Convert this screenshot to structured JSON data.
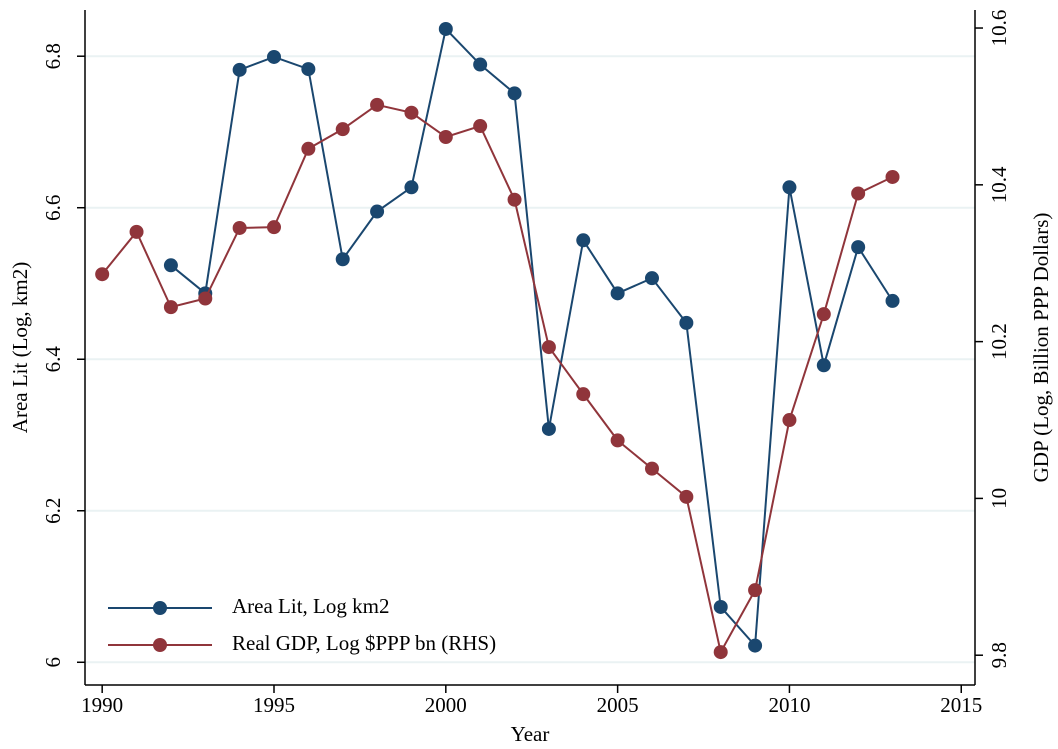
{
  "chart_data": {
    "type": "line",
    "x_label": "Year",
    "y_label": "Area Lit (Log, km2)",
    "y2_label": "GDP (Log, Billion PPP Dollars)",
    "x": [
      1990,
      1991,
      1992,
      1993,
      1994,
      1995,
      1996,
      1997,
      1998,
      1999,
      2000,
      2001,
      2002,
      2003,
      2004,
      2005,
      2006,
      2007,
      2008,
      2009,
      2010,
      2011,
      2012,
      2013
    ],
    "series": [
      {
        "name": "Area Lit, Log km2",
        "color": "#1a476f",
        "axis": "y",
        "values": [
          null,
          null,
          6.524,
          6.487,
          6.782,
          6.799,
          6.783,
          6.532,
          6.595,
          6.627,
          6.836,
          6.789,
          6.751,
          6.308,
          6.557,
          6.487,
          6.507,
          6.448,
          6.073,
          6.022,
          6.627,
          6.392,
          6.548,
          6.477
        ]
      },
      {
        "name": "Real GDP, Log $PPP bn (RHS)",
        "color": "#90353b",
        "axis": "y2",
        "values": [
          10.286,
          10.34,
          10.244,
          10.255,
          10.345,
          10.346,
          10.446,
          10.471,
          10.502,
          10.492,
          10.461,
          10.475,
          10.381,
          10.193,
          10.133,
          10.074,
          10.038,
          10.002,
          9.804,
          9.883,
          10.1,
          10.235,
          10.389,
          10.41
        ]
      }
    ],
    "xlim": [
      1989.5,
      2015.4
    ],
    "xticks": [
      1990,
      1995,
      2000,
      2005,
      2010,
      2015
    ],
    "ylim": [
      5.97,
      6.861
    ],
    "yticks": [
      6,
      6.2,
      6.4,
      6.6,
      6.8
    ],
    "y2lim": [
      9.762,
      10.623
    ],
    "y2ticks": [
      9.8,
      10,
      10.2,
      10.4,
      10.6
    ],
    "grid": true,
    "legend": "lower left"
  }
}
